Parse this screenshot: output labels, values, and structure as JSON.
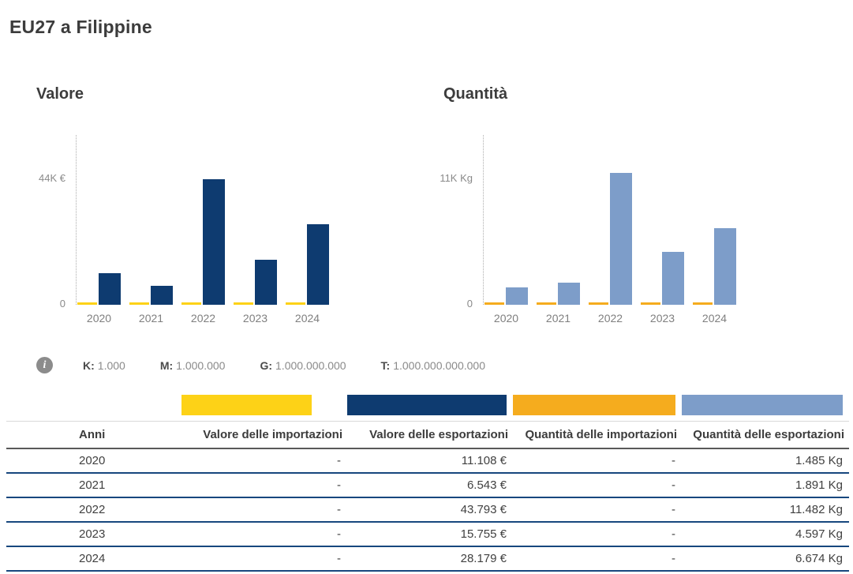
{
  "page": {
    "title": "EU27 a Filippine"
  },
  "colors": {
    "import_value": "#FDD217",
    "export_value": "#0E3B70",
    "import_qty": "#F5AC1E",
    "export_qty": "#7D9DC9"
  },
  "chart_data": [
    {
      "type": "bar",
      "title": "Valore",
      "axis_label": "44K €",
      "axis_value": 44000,
      "zero_label": "0",
      "ylim": [
        0,
        48000
      ],
      "grid": false,
      "categories": [
        "2020",
        "2021",
        "2022",
        "2023",
        "2024"
      ],
      "series": [
        {
          "name": "Valore delle importazioni",
          "color_key": "import_value",
          "values": [
            null,
            null,
            null,
            null,
            null
          ]
        },
        {
          "name": "Valore delle esportazioni",
          "color_key": "export_value",
          "values": [
            11108,
            6543,
            43793,
            15755,
            28179
          ]
        }
      ]
    },
    {
      "type": "bar",
      "title": "Quantità",
      "axis_label": "11K Kg",
      "axis_value": 11000,
      "zero_label": "0",
      "ylim": [
        0,
        12000
      ],
      "grid": false,
      "categories": [
        "2020",
        "2021",
        "2022",
        "2023",
        "2024"
      ],
      "series": [
        {
          "name": "Quantità delle importazioni",
          "color_key": "import_qty",
          "values": [
            null,
            null,
            null,
            null,
            null
          ]
        },
        {
          "name": "Quantità delle esportazioni",
          "color_key": "export_qty",
          "values": [
            1485,
            1891,
            11482,
            4597,
            6674
          ]
        }
      ]
    }
  ],
  "units_info": {
    "items": [
      {
        "key": "K:",
        "value": "1.000"
      },
      {
        "key": "M:",
        "value": "1.000.000"
      },
      {
        "key": "G:",
        "value": "1.000.000.000"
      },
      {
        "key": "T:",
        "value": "1.000.000.000.000"
      }
    ]
  },
  "legend": {
    "color_keys": [
      "import_value",
      "export_value",
      "import_qty",
      "export_qty"
    ]
  },
  "table": {
    "columns": [
      "Anni",
      "Valore delle importazioni",
      "Valore delle esportazioni",
      "Quantità delle importazioni",
      "Quantità delle esportazioni"
    ],
    "rows": [
      [
        "2020",
        "-",
        "11.108 €",
        "-",
        "1.485 Kg"
      ],
      [
        "2021",
        "-",
        "6.543 €",
        "-",
        "1.891 Kg"
      ],
      [
        "2022",
        "-",
        "43.793 €",
        "-",
        "11.482 Kg"
      ],
      [
        "2023",
        "-",
        "15.755 €",
        "-",
        "4.597 Kg"
      ],
      [
        "2024",
        "-",
        "28.179 €",
        "-",
        "6.674 Kg"
      ]
    ]
  }
}
